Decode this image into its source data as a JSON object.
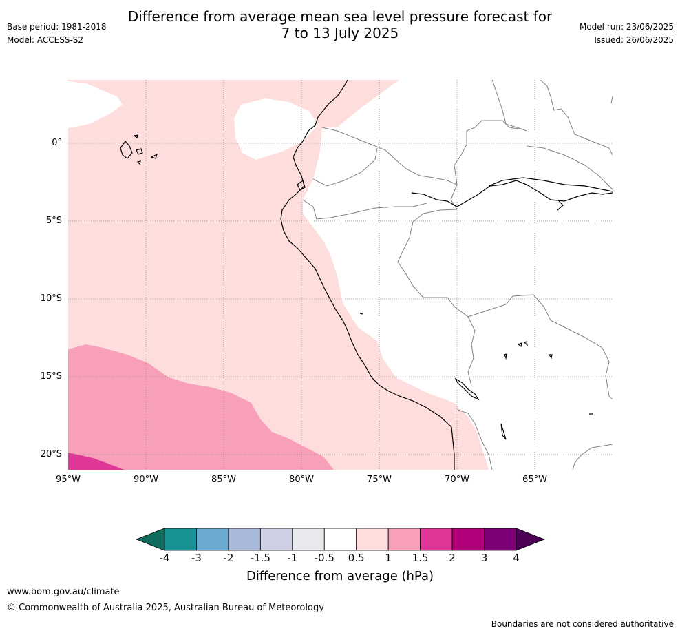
{
  "header": {
    "title_line1": "Difference from average mean sea level pressure forecast for",
    "title_line2": "7 to 13 July 2025",
    "base_period": "Base period: 1981-2018",
    "model": "Model: ACCESS-S2",
    "model_run": "Model run: 23/06/2025",
    "issued": "Issued: 26/06/2025"
  },
  "map": {
    "lat_ticks": [
      "0°",
      "5°S",
      "10°S",
      "15°S",
      "20°S"
    ],
    "lon_ticks": [
      "95°W",
      "90°W",
      "85°W",
      "80°W",
      "75°W",
      "70°W",
      "65°W"
    ],
    "land_color": "#ffffff",
    "coast_color": "#000000",
    "border_color": "#808080",
    "grid_color": "#888888"
  },
  "colorbar": {
    "title": "Difference from average (hPa)",
    "labels": [
      "-4",
      "-3",
      "-2",
      "-1.5",
      "-1",
      "-0.5",
      "0.5",
      "1",
      "1.5",
      "2",
      "3",
      "4"
    ],
    "low_extend_color": "#0f6b5c",
    "high_extend_color": "#4b0055",
    "colors": [
      "#1a9396",
      "#6aa9d0",
      "#a9b9da",
      "#cfd0e6",
      "#e9e8ec",
      "#ffffff",
      "#fddedd",
      "#f89fb9",
      "#de3797",
      "#b0007a",
      "#7d0076"
    ]
  },
  "footer": {
    "website": "www.bom.gov.au/climate",
    "copyright": "© Commonwealth of Australia 2025, Australian Bureau of Meteorology",
    "disclaimer": "Boundaries are not considered authoritative"
  }
}
